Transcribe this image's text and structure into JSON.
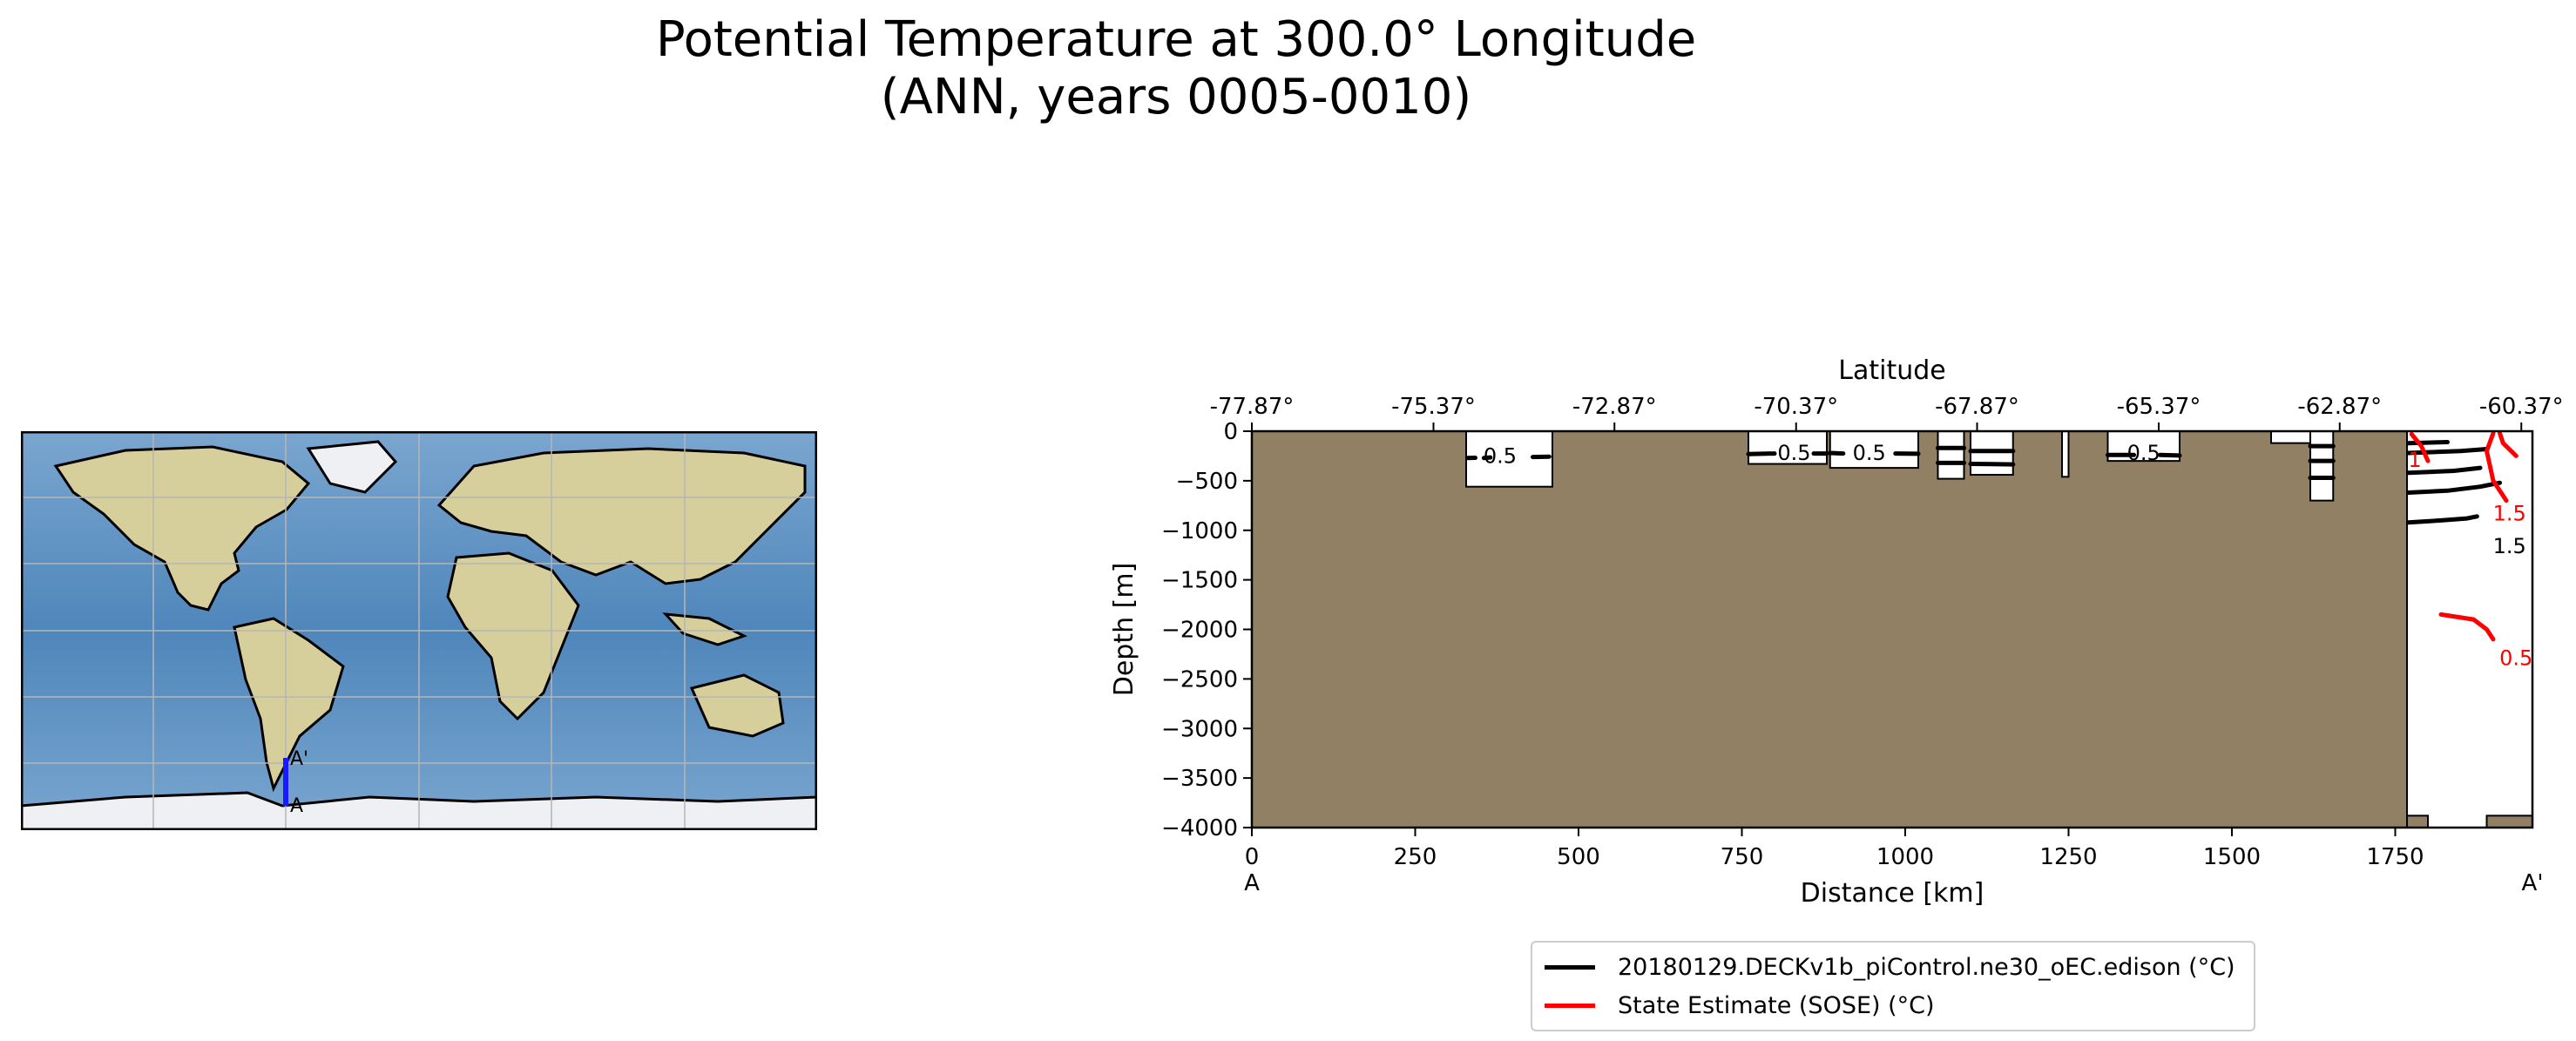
{
  "figure": {
    "title_line1": "Potential Temperature at 300.0° Longitude",
    "title_line2": "(ANN, years 0005-0010)"
  },
  "map": {
    "transect_start_label": "A",
    "transect_end_label": "A'",
    "transect_color": "#1a1aff",
    "ocean_color": "#5a8fc0",
    "land_color": "#d6cf9c",
    "ice_color": "#eef0f4"
  },
  "chart_data": {
    "type": "line",
    "title": "",
    "xlabel": "Distance [km]",
    "ylabel": "Depth [m]",
    "top_xlabel": "Latitude",
    "xlim": [
      0,
      1960
    ],
    "ylim": [
      -4000,
      0
    ],
    "x_ticks": [
      0,
      250,
      500,
      750,
      1000,
      1250,
      1500,
      1750
    ],
    "y_ticks": [
      0,
      -500,
      -1000,
      -1500,
      -2000,
      -2500,
      -3000,
      -3500,
      -4000
    ],
    "y_tick_labels": [
      "0",
      "−500",
      "−1000",
      "−1500",
      "−2000",
      "−2500",
      "−3000",
      "−3500",
      "−4000"
    ],
    "top_ticks": [
      {
        "x": 0,
        "label": "-77.87°"
      },
      {
        "x": 278,
        "label": "-75.37°"
      },
      {
        "x": 555,
        "label": "-72.87°"
      },
      {
        "x": 833,
        "label": "-70.37°"
      },
      {
        "x": 1110,
        "label": "-67.87°"
      },
      {
        "x": 1388,
        "label": "-65.37°"
      },
      {
        "x": 1665,
        "label": "-62.87°"
      },
      {
        "x": 1943,
        "label": "-60.37°"
      }
    ],
    "section_start_label": "A",
    "section_end_label": "A'",
    "land_color": "#918064",
    "grid": false,
    "legend_position": "bottom-center",
    "legend": [
      {
        "label": "20180129.DECKv1b_piControl.ne30_oEC.edison (°C)",
        "color": "#000000"
      },
      {
        "label": "State Estimate (SOSE) (°C)",
        "color": "#ff0000"
      }
    ],
    "water_columns": [
      {
        "x0": 328,
        "x1": 460,
        "bottom": -560
      },
      {
        "x0": 760,
        "x1": 880,
        "bottom": -330
      },
      {
        "x0": 885,
        "x1": 1020,
        "bottom": -370
      },
      {
        "x0": 1050,
        "x1": 1090,
        "bottom": -480
      },
      {
        "x0": 1100,
        "x1": 1165,
        "bottom": -440
      },
      {
        "x0": 1240,
        "x1": 1250,
        "bottom": -460
      },
      {
        "x0": 1310,
        "x1": 1420,
        "bottom": -300
      },
      {
        "x0": 1560,
        "x1": 1620,
        "bottom": -120
      },
      {
        "x0": 1620,
        "x1": 1655,
        "bottom": -700
      },
      {
        "x0": 1768,
        "x1": 1960,
        "bottom": -4000
      }
    ],
    "series": [
      {
        "name": "20180129.DECKv1b_piControl.ne30_oEC.edison (°C)",
        "color": "#000000",
        "contours": [
          {
            "level": 0.5,
            "points": [
              [
                355,
                -270
              ],
              [
                365,
                -265
              ]
            ],
            "label_at": [
              380,
              -240
            ]
          },
          {
            "level": 0.5,
            "points": [
              [
                330,
                -270
              ],
              [
                342,
                -268
              ]
            ]
          },
          {
            "level": 0.5,
            "points": [
              [
                430,
                -260
              ],
              [
                455,
                -258
              ]
            ]
          },
          {
            "level": 0.5,
            "points": [
              [
                760,
                -230
              ],
              [
                800,
                -225
              ]
            ],
            "label_at": [
              830,
              -210
            ]
          },
          {
            "level": 0.5,
            "points": [
              [
                860,
                -225
              ],
              [
                880,
                -225
              ]
            ]
          },
          {
            "level": 0.5,
            "points": [
              [
                885,
                -220
              ],
              [
                905,
                -225
              ]
            ],
            "label_at": [
              945,
              -210
            ]
          },
          {
            "level": 0.5,
            "points": [
              [
                985,
                -225
              ],
              [
                1020,
                -228
              ]
            ]
          },
          {
            "level": 0.5,
            "points": [
              [
                1050,
                -170
              ],
              [
                1090,
                -170
              ]
            ]
          },
          {
            "level": 0.5,
            "points": [
              [
                1050,
                -320
              ],
              [
                1090,
                -320
              ]
            ]
          },
          {
            "level": 0.5,
            "points": [
              [
                1100,
                -200
              ],
              [
                1165,
                -200
              ]
            ]
          },
          {
            "level": 0.5,
            "points": [
              [
                1100,
                -330
              ],
              [
                1165,
                -335
              ]
            ]
          },
          {
            "level": 0.5,
            "points": [
              [
                1310,
                -240
              ],
              [
                1350,
                -240
              ]
            ],
            "label_at": [
              1365,
              -210
            ]
          },
          {
            "level": 0.5,
            "points": [
              [
                1390,
                -240
              ],
              [
                1420,
                -245
              ]
            ]
          },
          {
            "level": 0.5,
            "points": [
              [
                1620,
                -150
              ],
              [
                1655,
                -150
              ]
            ]
          },
          {
            "level": 0.5,
            "points": [
              [
                1620,
                -300
              ],
              [
                1655,
                -300
              ]
            ]
          },
          {
            "level": 0.5,
            "points": [
              [
                1620,
                -470
              ],
              [
                1655,
                -470
              ]
            ]
          },
          {
            "level": 0.5,
            "points": [
              [
                1770,
                -120
              ],
              [
                1830,
                -110
              ]
            ]
          },
          {
            "level": 1.0,
            "points": [
              [
                1770,
                -220
              ],
              [
                1850,
                -200
              ],
              [
                1890,
                -180
              ]
            ]
          },
          {
            "level": 2.0,
            "points": [
              [
                1770,
                -420
              ],
              [
                1840,
                -400
              ],
              [
                1880,
                -370
              ]
            ]
          },
          {
            "level": 1.5,
            "points": [
              [
                1770,
                -620
              ],
              [
                1830,
                -600
              ],
              [
                1880,
                -560
              ],
              [
                1910,
                -520
              ]
            ]
          },
          {
            "level": 1.5,
            "points": [
              [
                1770,
                -920
              ],
              [
                1820,
                -900
              ],
              [
                1860,
                -880
              ],
              [
                1875,
                -860
              ]
            ],
            "label_at": [
              1925,
              -1150
            ]
          }
        ]
      },
      {
        "name": "State Estimate (SOSE) (°C)",
        "color": "#ff0000",
        "contours": [
          {
            "level": 1.0,
            "points": [
              [
                1775,
                -30
              ],
              [
                1790,
                -150
              ],
              [
                1800,
                -300
              ]
            ],
            "label_at": [
              1780,
              -280
            ]
          },
          {
            "level": 1.5,
            "points": [
              [
                1900,
                -20
              ],
              [
                1890,
                -200
              ],
              [
                1900,
                -500
              ],
              [
                1920,
                -700
              ]
            ],
            "label_at": [
              1925,
              -820
            ]
          },
          {
            "level": 1.5,
            "points": [
              [
                1910,
                -20
              ],
              [
                1915,
                -120
              ],
              [
                1935,
                -250
              ]
            ]
          },
          {
            "level": 0.5,
            "points": [
              [
                1820,
                -1850
              ],
              [
                1870,
                -1900
              ],
              [
                1890,
                -2000
              ],
              [
                1900,
                -2100
              ]
            ],
            "label_at": [
              1935,
              -2280
            ]
          }
        ]
      }
    ]
  }
}
